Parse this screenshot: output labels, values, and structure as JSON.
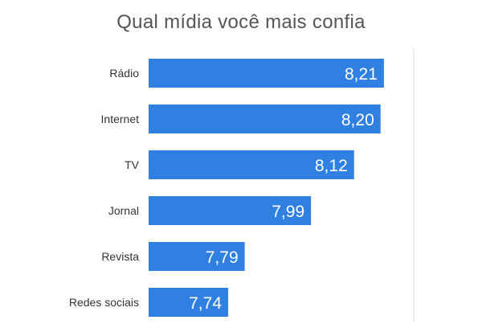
{
  "chart_data": {
    "type": "bar",
    "orientation": "horizontal",
    "title": "Qual mídia você mais confia",
    "categories": [
      "Rádio",
      "Internet",
      "TV",
      "Jornal",
      "Revista",
      "Redes sociais"
    ],
    "values": [
      8.21,
      8.2,
      8.12,
      7.99,
      7.79,
      7.74
    ],
    "value_labels": [
      "8,21",
      "8,20",
      "8,12",
      "7,99",
      "7,79",
      "7,74"
    ],
    "xlabel": "",
    "ylabel": "",
    "xlim": [
      7.5,
      8.3
    ],
    "grid": false,
    "legend": "none",
    "colors": {
      "bar": "#2F80E0",
      "bar_label": "#ffffff",
      "category_label": "#333333",
      "title": "#555555",
      "axis_line": "#d9d9d9"
    }
  }
}
